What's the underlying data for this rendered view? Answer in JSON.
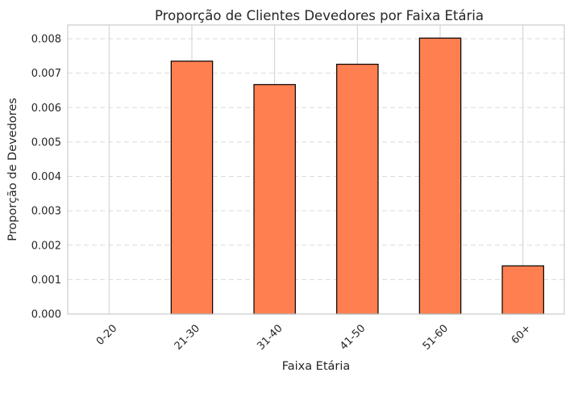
{
  "chart_data": {
    "type": "bar",
    "title": "Proporção de Clientes Devedores por Faixa Etária",
    "xlabel": "Faixa Etária",
    "ylabel": "Proporção de Devedores",
    "categories": [
      "0-20",
      "21-30",
      "31-40",
      "41-50",
      "51-60",
      "60+"
    ],
    "values": [
      0.0,
      0.00735,
      0.00667,
      0.00726,
      0.00802,
      0.0014
    ],
    "ylim": [
      0,
      0.0084
    ],
    "yticks": [
      "0.000",
      "0.001",
      "0.002",
      "0.003",
      "0.004",
      "0.005",
      "0.006",
      "0.007",
      "0.008"
    ],
    "grid": true,
    "colors": {
      "bar": "#ff7f50",
      "bar_edge": "#000000",
      "grid_x": "#cfcfcf",
      "grid_y": "#d9d9d9",
      "frame": "#cccccc"
    }
  }
}
